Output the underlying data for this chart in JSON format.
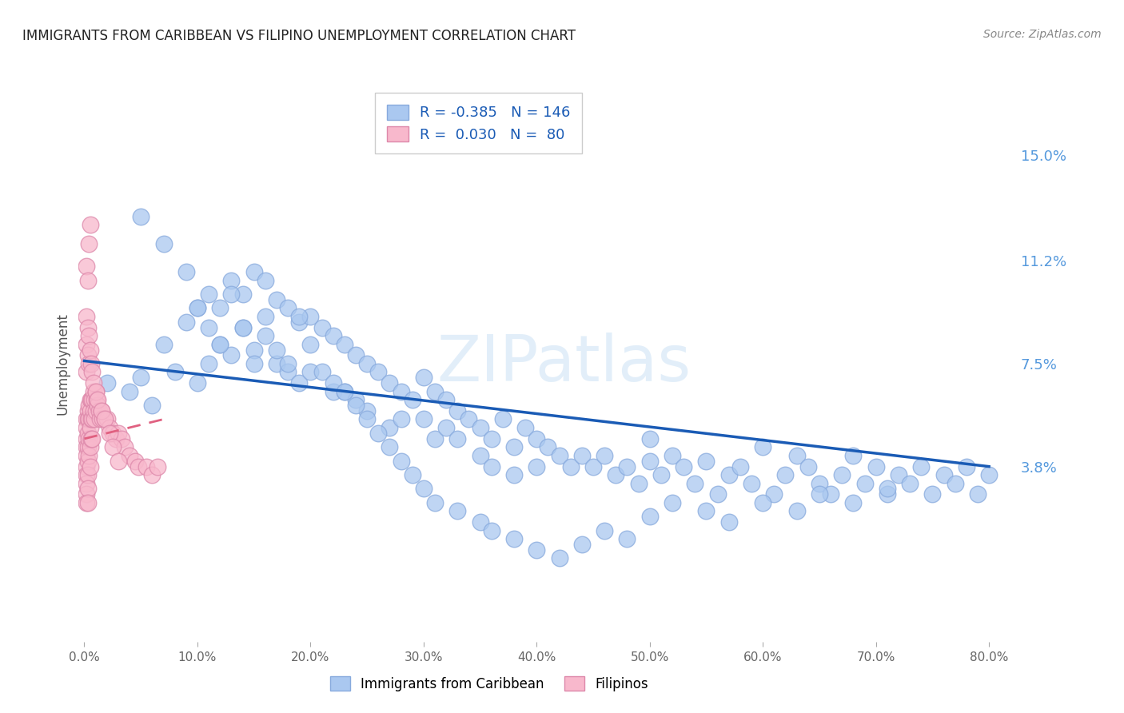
{
  "title": "IMMIGRANTS FROM CARIBBEAN VS FILIPINO UNEMPLOYMENT CORRELATION CHART",
  "source": "Source: ZipAtlas.com",
  "ylabel": "Unemployment",
  "watermark": "ZIPatlas",
  "blue_label": "Immigrants from Caribbean",
  "pink_label": "Filipinos",
  "blue_R": "-0.385",
  "blue_N": "146",
  "pink_R": "0.030",
  "pink_N": "80",
  "blue_color": "#aac8f0",
  "blue_edge_color": "#88aadd",
  "blue_line_color": "#1a5bb5",
  "pink_color": "#f8b8cc",
  "pink_edge_color": "#dd88aa",
  "pink_line_color": "#e06080",
  "pink_dash_color": "#e06080",
  "background_color": "#ffffff",
  "grid_color": "#dddddd",
  "title_color": "#222222",
  "right_tick_color": "#5599dd",
  "ytick_labels": [
    "3.8%",
    "7.5%",
    "11.2%",
    "15.0%"
  ],
  "ytick_values": [
    0.038,
    0.075,
    0.112,
    0.15
  ],
  "xlim": [
    -0.005,
    0.82
  ],
  "ylim": [
    -0.025,
    0.175
  ],
  "blue_scatter_x": [
    0.02,
    0.04,
    0.05,
    0.06,
    0.07,
    0.08,
    0.09,
    0.1,
    0.1,
    0.11,
    0.11,
    0.12,
    0.12,
    0.13,
    0.13,
    0.14,
    0.14,
    0.15,
    0.15,
    0.16,
    0.16,
    0.17,
    0.17,
    0.18,
    0.18,
    0.19,
    0.19,
    0.2,
    0.2,
    0.21,
    0.22,
    0.22,
    0.23,
    0.23,
    0.24,
    0.24,
    0.25,
    0.25,
    0.26,
    0.27,
    0.27,
    0.28,
    0.28,
    0.29,
    0.3,
    0.3,
    0.31,
    0.31,
    0.32,
    0.32,
    0.33,
    0.33,
    0.34,
    0.35,
    0.35,
    0.36,
    0.36,
    0.37,
    0.38,
    0.38,
    0.39,
    0.4,
    0.4,
    0.41,
    0.42,
    0.43,
    0.44,
    0.45,
    0.46,
    0.47,
    0.48,
    0.49,
    0.5,
    0.5,
    0.51,
    0.52,
    0.53,
    0.54,
    0.55,
    0.56,
    0.57,
    0.58,
    0.59,
    0.6,
    0.61,
    0.62,
    0.63,
    0.64,
    0.65,
    0.66,
    0.67,
    0.68,
    0.69,
    0.7,
    0.71,
    0.72,
    0.73,
    0.74,
    0.75,
    0.76,
    0.77,
    0.78,
    0.79,
    0.8,
    0.05,
    0.07,
    0.09,
    0.1,
    0.11,
    0.12,
    0.13,
    0.14,
    0.15,
    0.16,
    0.17,
    0.18,
    0.19,
    0.2,
    0.21,
    0.22,
    0.23,
    0.24,
    0.25,
    0.26,
    0.27,
    0.28,
    0.29,
    0.3,
    0.31,
    0.33,
    0.35,
    0.36,
    0.38,
    0.4,
    0.42,
    0.44,
    0.46,
    0.48,
    0.5,
    0.52,
    0.55,
    0.57,
    0.6,
    0.63,
    0.65,
    0.68,
    0.71
  ],
  "blue_scatter_y": [
    0.068,
    0.065,
    0.07,
    0.06,
    0.082,
    0.072,
    0.09,
    0.095,
    0.068,
    0.1,
    0.075,
    0.095,
    0.082,
    0.105,
    0.078,
    0.1,
    0.088,
    0.108,
    0.08,
    0.105,
    0.085,
    0.098,
    0.075,
    0.095,
    0.072,
    0.09,
    0.068,
    0.092,
    0.072,
    0.088,
    0.085,
    0.065,
    0.082,
    0.065,
    0.078,
    0.062,
    0.075,
    0.058,
    0.072,
    0.068,
    0.052,
    0.065,
    0.055,
    0.062,
    0.07,
    0.055,
    0.065,
    0.048,
    0.062,
    0.052,
    0.058,
    0.048,
    0.055,
    0.052,
    0.042,
    0.048,
    0.038,
    0.055,
    0.045,
    0.035,
    0.052,
    0.048,
    0.038,
    0.045,
    0.042,
    0.038,
    0.042,
    0.038,
    0.042,
    0.035,
    0.038,
    0.032,
    0.04,
    0.048,
    0.035,
    0.042,
    0.038,
    0.032,
    0.04,
    0.028,
    0.035,
    0.038,
    0.032,
    0.045,
    0.028,
    0.035,
    0.042,
    0.038,
    0.032,
    0.028,
    0.035,
    0.042,
    0.032,
    0.038,
    0.028,
    0.035,
    0.032,
    0.038,
    0.028,
    0.035,
    0.032,
    0.038,
    0.028,
    0.035,
    0.128,
    0.118,
    0.108,
    0.095,
    0.088,
    0.082,
    0.1,
    0.088,
    0.075,
    0.092,
    0.08,
    0.075,
    0.092,
    0.082,
    0.072,
    0.068,
    0.065,
    0.06,
    0.055,
    0.05,
    0.045,
    0.04,
    0.035,
    0.03,
    0.025,
    0.022,
    0.018,
    0.015,
    0.012,
    0.008,
    0.005,
    0.01,
    0.015,
    0.012,
    0.02,
    0.025,
    0.022,
    0.018,
    0.025,
    0.022,
    0.028,
    0.025,
    0.03
  ],
  "pink_scatter_x": [
    0.002,
    0.002,
    0.002,
    0.002,
    0.002,
    0.002,
    0.002,
    0.002,
    0.002,
    0.002,
    0.003,
    0.003,
    0.003,
    0.003,
    0.003,
    0.003,
    0.003,
    0.003,
    0.004,
    0.004,
    0.004,
    0.004,
    0.005,
    0.005,
    0.005,
    0.005,
    0.005,
    0.006,
    0.006,
    0.006,
    0.007,
    0.007,
    0.007,
    0.008,
    0.008,
    0.009,
    0.009,
    0.01,
    0.01,
    0.011,
    0.012,
    0.013,
    0.014,
    0.015,
    0.016,
    0.018,
    0.02,
    0.022,
    0.025,
    0.028,
    0.03,
    0.033,
    0.036,
    0.04,
    0.045,
    0.048,
    0.055,
    0.06,
    0.065,
    0.002,
    0.002,
    0.002,
    0.003,
    0.003,
    0.004,
    0.004,
    0.005,
    0.006,
    0.007,
    0.008,
    0.01,
    0.012,
    0.015,
    0.018,
    0.022,
    0.025,
    0.03,
    0.002,
    0.003,
    0.004,
    0.005
  ],
  "pink_scatter_y": [
    0.055,
    0.052,
    0.048,
    0.045,
    0.042,
    0.038,
    0.035,
    0.032,
    0.028,
    0.025,
    0.058,
    0.055,
    0.05,
    0.045,
    0.04,
    0.035,
    0.03,
    0.025,
    0.06,
    0.055,
    0.048,
    0.042,
    0.062,
    0.058,
    0.052,
    0.045,
    0.038,
    0.062,
    0.055,
    0.048,
    0.062,
    0.055,
    0.048,
    0.065,
    0.058,
    0.062,
    0.055,
    0.065,
    0.058,
    0.062,
    0.06,
    0.058,
    0.055,
    0.058,
    0.055,
    0.055,
    0.055,
    0.052,
    0.05,
    0.048,
    0.05,
    0.048,
    0.045,
    0.042,
    0.04,
    0.038,
    0.038,
    0.035,
    0.038,
    0.092,
    0.082,
    0.072,
    0.088,
    0.078,
    0.085,
    0.075,
    0.08,
    0.075,
    0.072,
    0.068,
    0.065,
    0.062,
    0.058,
    0.055,
    0.05,
    0.045,
    0.04,
    0.11,
    0.105,
    0.118,
    0.125
  ],
  "blue_trend_x": [
    0.0,
    0.8
  ],
  "blue_trend_y": [
    0.076,
    0.038
  ],
  "pink_trend_x": [
    0.0,
    0.07
  ],
  "pink_trend_y": [
    0.048,
    0.055
  ]
}
